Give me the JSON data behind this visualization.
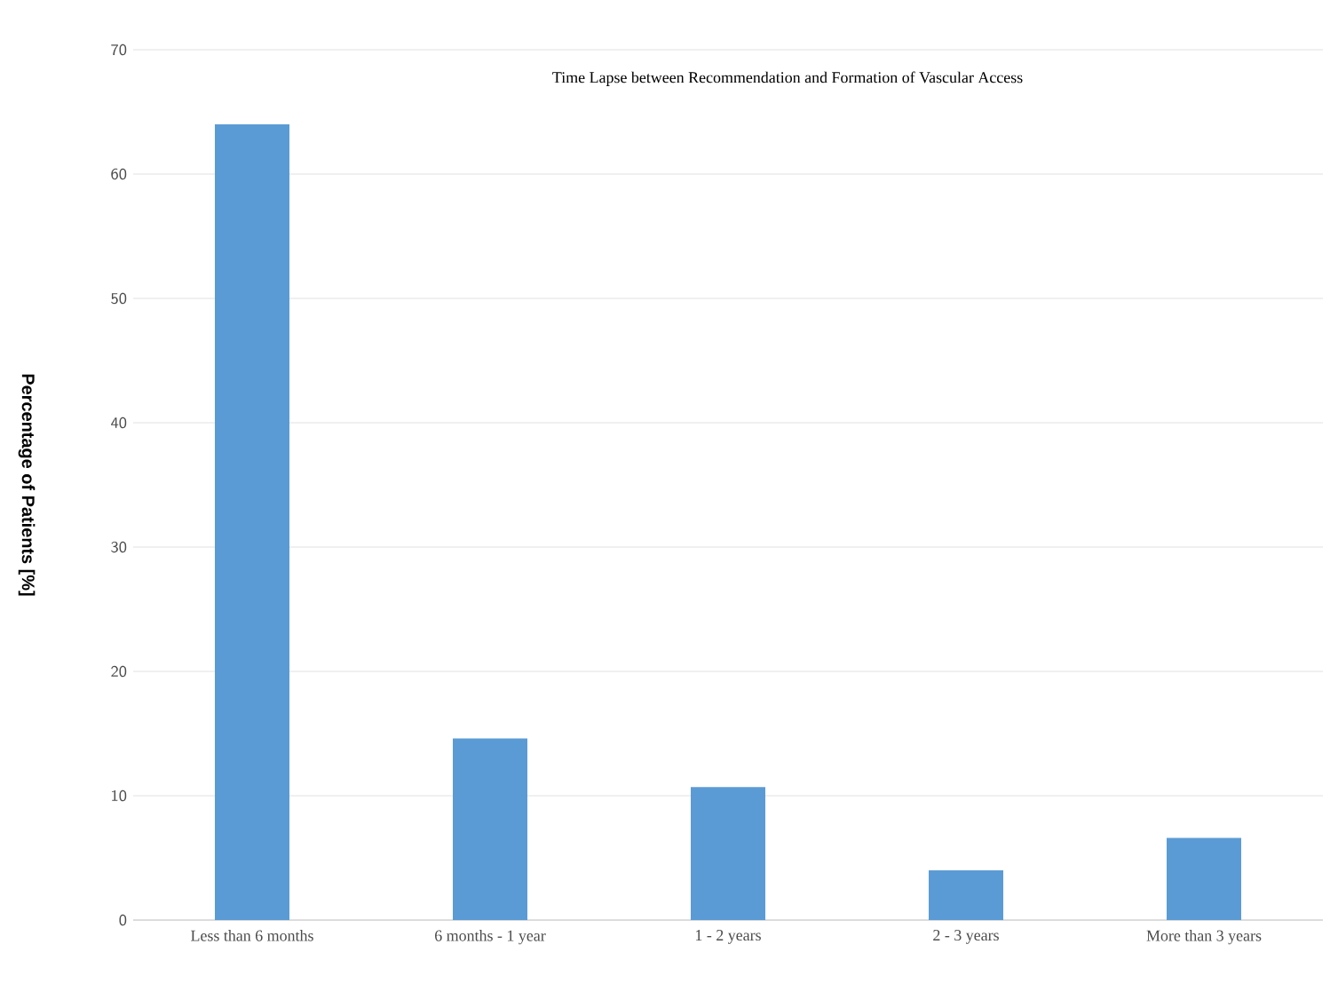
{
  "chart_data": {
    "type": "bar",
    "title": "Time Lapse between Recommendation and Formation of Vascular Access",
    "ylabel": "Percentage of Patients [%]",
    "categories": [
      "Less than 6 months",
      "6 months - 1 year",
      "1 - 2 years",
      "2 - 3 years",
      "More than 3 years"
    ],
    "values": [
      64,
      14.6,
      10.7,
      4.0,
      6.6
    ],
    "color": "#5b9bd5",
    "ylim": [
      0,
      70
    ],
    "yticks": [
      0,
      10,
      20,
      30,
      40,
      50,
      60,
      70
    ],
    "grid": "y"
  }
}
